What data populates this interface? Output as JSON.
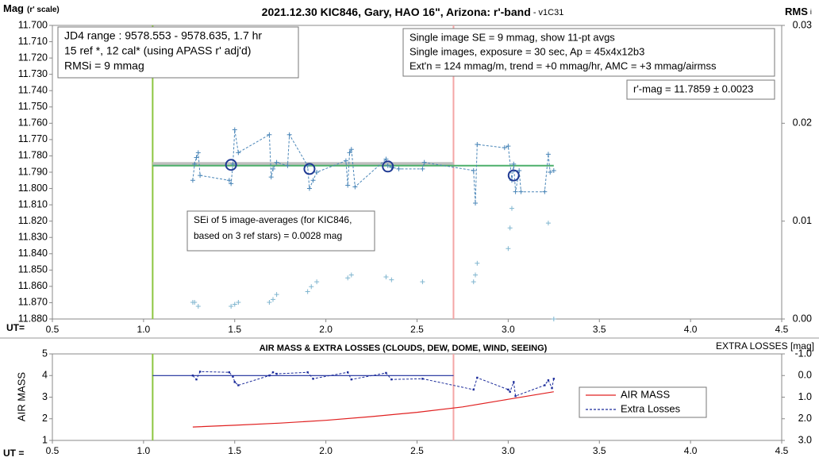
{
  "chart_data": [
    {
      "type": "line",
      "title": "2021.12.30 KIC846, Gary, HAO 16\", Arizona: r'-band",
      "title_suffix": " - v1C31",
      "y_label": "Mag",
      "y_label_note": "(r' scale)",
      "y2_label": "RMS",
      "y2_label_sub": "i",
      "x_label": "UT=",
      "xlim": [
        0.5,
        4.5
      ],
      "xticks": [
        0.5,
        {
          "value": 1.0,
          "label": "1.0"
        },
        1.5,
        {
          "value": 2.0,
          "label": "2.0"
        },
        2.5,
        {
          "value": 3.0,
          "label": "3.0"
        },
        3.5,
        {
          "value": 4.0,
          "label": "4.0"
        },
        4.5
      ],
      "ylim": [
        11.88,
        11.7
      ],
      "yticks": [
        {
          "value": 11.7,
          "label": "11.700"
        },
        {
          "value": 11.71,
          "label": "11.710"
        },
        {
          "value": 11.72,
          "label": "11.720"
        },
        {
          "value": 11.73,
          "label": "11.730"
        },
        {
          "value": 11.74,
          "label": "11.740"
        },
        {
          "value": 11.75,
          "label": "11.750"
        },
        {
          "value": 11.76,
          "label": "11.760"
        },
        {
          "value": 11.77,
          "label": "11.770"
        },
        {
          "value": 11.78,
          "label": "11.780"
        },
        {
          "value": 11.79,
          "label": "11.790"
        },
        {
          "value": 11.8,
          "label": "11.800"
        },
        {
          "value": 11.81,
          "label": "11.810"
        },
        {
          "value": 11.82,
          "label": "11.820"
        },
        {
          "value": 11.83,
          "label": "11.830"
        },
        {
          "value": 11.84,
          "label": "11.840"
        },
        {
          "value": 11.85,
          "label": "11.850"
        },
        {
          "value": 11.86,
          "label": "11.860"
        },
        {
          "value": 11.87,
          "label": "11.870"
        },
        {
          "value": 11.88,
          "label": "11.880"
        }
      ],
      "y2lim": [
        0,
        0.03
      ],
      "y2ticks": [
        {
          "value": 0,
          "label": "0.00"
        },
        {
          "value": 0.01,
          "label": "0.01"
        },
        {
          "value": 0.02,
          "label": "0.02"
        },
        {
          "value": 0.03,
          "label": "0.03"
        }
      ],
      "vlines": [
        {
          "x": 1.05,
          "color": "#8cc63f"
        },
        {
          "x": 2.7,
          "color": "#f4a6a6"
        }
      ],
      "series": [
        {
          "style": "line",
          "color": "#bfbfbf",
          "width": 5,
          "x": [
            1.05,
            2.7
          ],
          "values": [
            11.785,
            11.785
          ]
        },
        {
          "style": "line",
          "color": "#4caf6a",
          "width": 2,
          "x": [
            1.05,
            3.25
          ],
          "values": [
            11.786,
            11.786
          ]
        },
        {
          "style": "dashed-cross",
          "color": "#4a86b8",
          "x": [
            1.27,
            1.28,
            1.29,
            1.3,
            1.31,
            1.47,
            1.48,
            1.49,
            1.5,
            1.52,
            1.69,
            1.7,
            1.71,
            1.73,
            1.79,
            1.8,
            1.9,
            1.91,
            1.93,
            1.95,
            2.11,
            2.12,
            2.13,
            2.14,
            2.16,
            2.33,
            2.34,
            2.36,
            2.4,
            2.53,
            2.54,
            2.81,
            2.82,
            2.83,
            2.98,
            3.0,
            3.02,
            3.03,
            3.04,
            3.06,
            3.07,
            3.2,
            3.22,
            3.23,
            3.25
          ],
          "values": [
            11.795,
            11.785,
            11.781,
            11.778,
            11.792,
            11.795,
            11.797,
            11.785,
            11.764,
            11.778,
            11.767,
            11.793,
            11.788,
            11.784,
            11.786,
            11.767,
            11.786,
            11.8,
            11.795,
            11.79,
            11.783,
            11.798,
            11.778,
            11.776,
            11.799,
            11.782,
            11.786,
            11.787,
            11.788,
            11.788,
            11.784,
            11.789,
            11.809,
            11.773,
            11.775,
            11.774,
            11.795,
            11.785,
            11.802,
            11.789,
            11.802,
            11.802,
            11.779,
            11.79,
            11.789
          ]
        },
        {
          "style": "circles",
          "color": "#1f3a93",
          "x": [
            1.48,
            1.91,
            2.34,
            3.03
          ],
          "values": [
            11.7855,
            11.788,
            11.7865,
            11.792
          ]
        },
        {
          "style": "cross",
          "color": "#7fb5cf",
          "axis": "y2",
          "x": [
            1.27,
            1.28,
            1.3,
            1.48,
            1.5,
            1.52,
            1.69,
            1.71,
            1.73,
            1.9,
            1.92,
            1.95,
            2.12,
            2.14,
            2.33,
            2.36,
            2.53,
            2.81,
            2.82,
            2.83,
            3.0,
            3.01,
            3.02,
            3.22,
            3.25
          ],
          "values": [
            0.0017,
            0.0017,
            0.0013,
            0.0013,
            0.0015,
            0.0017,
            0.0017,
            0.002,
            0.0025,
            0.0028,
            0.0033,
            0.0038,
            0.0042,
            0.0045,
            0.0043,
            0.004,
            0.0038,
            0.0038,
            0.0045,
            0.0057,
            0.0072,
            0.0093,
            0.0113,
            0.0098,
            0
          ]
        }
      ],
      "annotations": [
        {
          "lines": [
            "JD4 range : 9578.553 - 9578.635,  1.7  hr",
            "15 ref *, 12 cal* (using APASS r' adj'd)",
            "RMSi = 9 mmag"
          ]
        },
        {
          "lines": [
            "Single image SE = 9 mmag, show  11-pt avgs",
            "Single images, exposure = 30 sec, Ap = 45x4x12b3",
            "Ext'n = 124 mmag/m, trend = +0  mmag/hr, AMC = +3 mmag/airmss"
          ]
        },
        {
          "lines": [
            "r'-mag = 11.7859 ± 0.0023"
          ]
        },
        {
          "lines": [
            "SEi of 5 image-averages (for KIC846,",
            "based on 3 ref stars) = 0.0028 mag"
          ]
        }
      ]
    },
    {
      "type": "line",
      "title": "AIR MASS & EXTRA LOSSES (CLOUDS, DEW, DOME, WIND, SEEING)",
      "y_label": "AIR MASS",
      "y2_label": "EXTRA LOSSES [mag]",
      "x_label": "UT =",
      "xlim": [
        0.5,
        4.5
      ],
      "xticks": [
        0.5,
        {
          "value": 1.0,
          "label": "1.0"
        },
        1.5,
        {
          "value": 2.0,
          "label": "2.0"
        },
        2.5,
        {
          "value": 3.0,
          "label": "3.0"
        },
        3.5,
        {
          "value": 4.0,
          "label": "4.0"
        },
        4.5
      ],
      "ylim": [
        1,
        5
      ],
      "yticks": [
        1,
        2,
        3,
        4,
        5
      ],
      "y2lim": [
        3,
        -1
      ],
      "y2ticks": [
        {
          "value": -1,
          "label": "-1.0"
        },
        {
          "value": 0,
          "label": "0.0"
        },
        {
          "value": 1,
          "label": "1.0"
        },
        {
          "value": 2,
          "label": "2.0"
        },
        {
          "value": 3,
          "label": "3.0"
        }
      ],
      "vlines": [
        {
          "x": 1.05,
          "color": "#8cc63f"
        },
        {
          "x": 2.7,
          "color": "#f4a6a6"
        }
      ],
      "series": [
        {
          "style": "line",
          "color": "#1a2a9a",
          "width": 1.2,
          "axis": "y2",
          "x": [
            1.05,
            2.7
          ],
          "values": [
            0,
            0
          ]
        },
        {
          "name": "AIR MASS",
          "style": "line",
          "color": "#e02020",
          "width": 1.2,
          "x": [
            1.27,
            1.5,
            1.75,
            2.0,
            2.25,
            2.5,
            2.75,
            3.0,
            3.25
          ],
          "values": [
            1.62,
            1.7,
            1.8,
            1.93,
            2.1,
            2.3,
            2.55,
            2.9,
            3.25
          ]
        },
        {
          "name": "Extra Losses",
          "style": "dashed-dot",
          "color": "#1a2a9a",
          "axis": "y2",
          "x": [
            1.27,
            1.29,
            1.31,
            1.47,
            1.49,
            1.5,
            1.52,
            1.69,
            1.71,
            1.73,
            1.9,
            1.93,
            2.12,
            2.14,
            2.33,
            2.36,
            2.53,
            2.81,
            2.83,
            3.0,
            3.01,
            3.03,
            3.04,
            3.2,
            3.22,
            3.24,
            3.25
          ],
          "values": [
            0,
            0.18,
            -0.18,
            -0.15,
            0.05,
            0.3,
            0.45,
            0,
            -0.15,
            -0.08,
            -0.15,
            0.15,
            -0.15,
            0.18,
            -0.12,
            0.18,
            0.15,
            0.65,
            0.1,
            0.65,
            0.75,
            0.3,
            0.95,
            0.45,
            0.22,
            0.58,
            0.15
          ]
        }
      ]
    }
  ]
}
